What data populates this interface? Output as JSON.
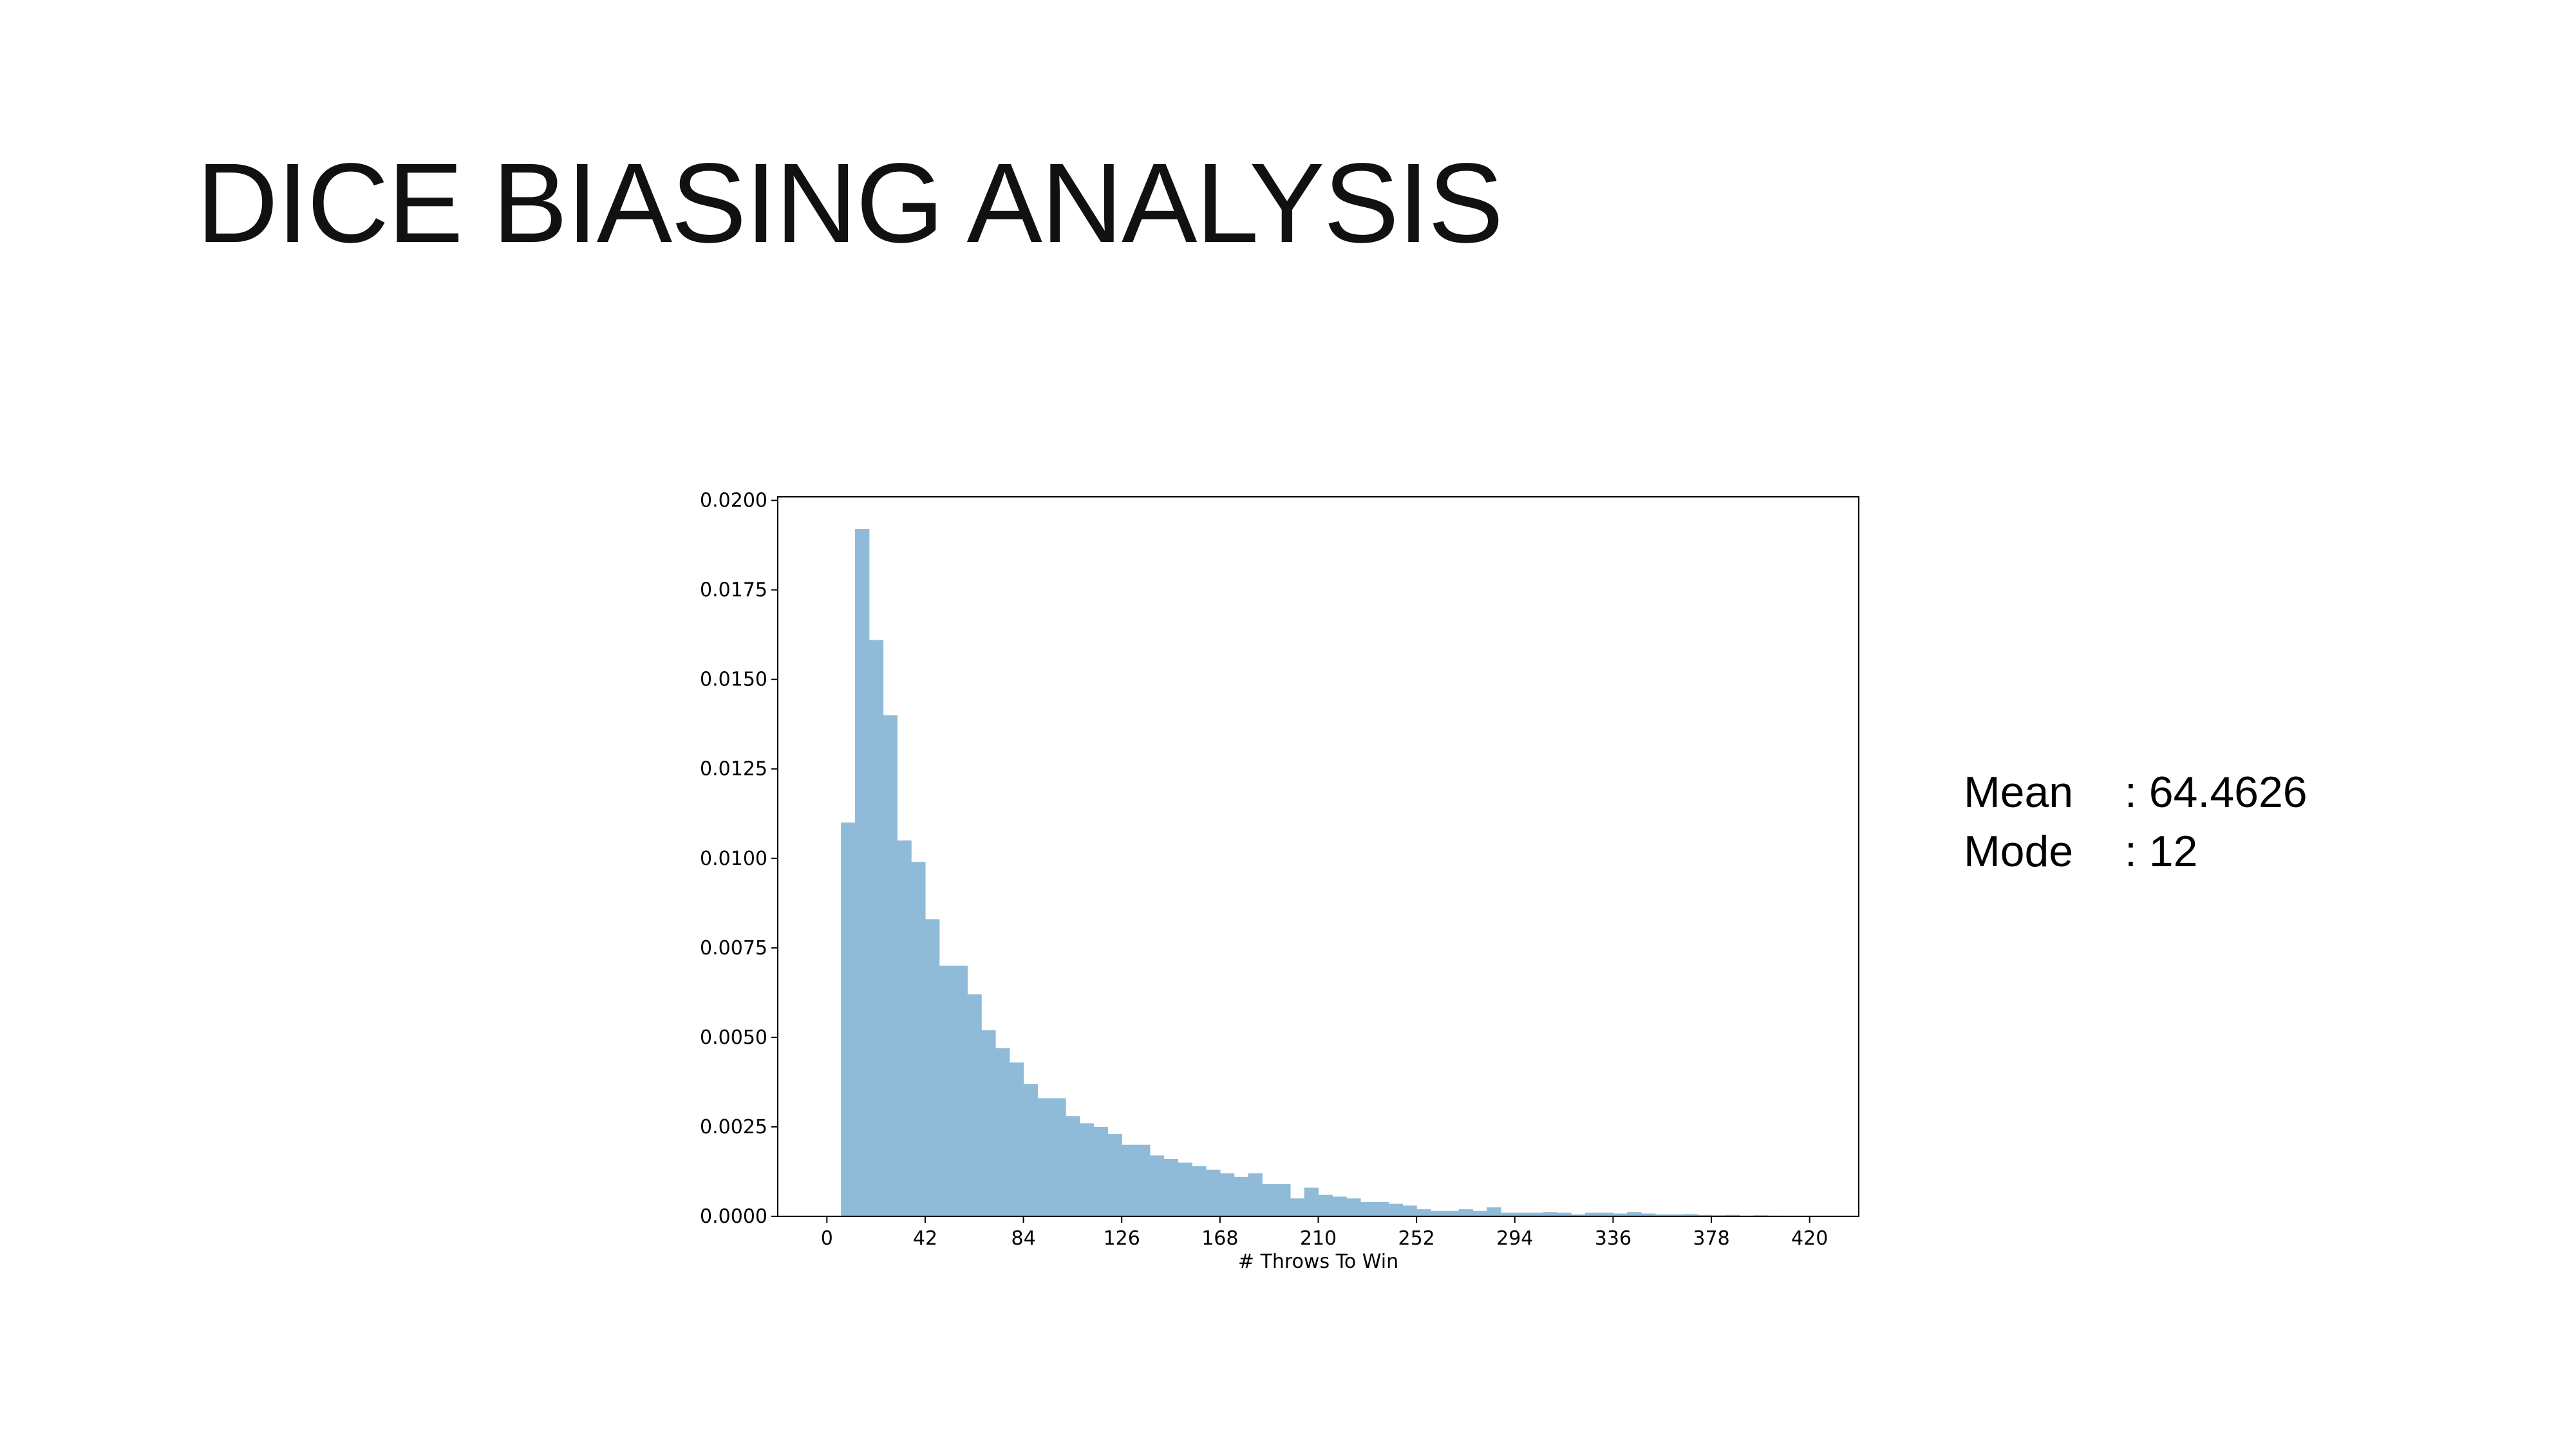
{
  "slide": {
    "title": "DICE BIASING ANALYSIS"
  },
  "stats": {
    "mean_label": "Mean",
    "mean_value": ": 64.4626",
    "mode_label": "Mode",
    "mode_value": ":  12"
  },
  "chart_data": {
    "type": "bar",
    "title": "",
    "xlabel": "# Throws To Win",
    "ylabel": "",
    "xlim": [
      -21,
      441
    ],
    "ylim": [
      0,
      0.0201
    ],
    "x_ticks": [
      0,
      42,
      84,
      126,
      168,
      210,
      252,
      294,
      336,
      378,
      420
    ],
    "y_ticks": [
      0.0,
      0.0025,
      0.005,
      0.0075,
      0.01,
      0.0125,
      0.015,
      0.0175,
      0.02
    ],
    "y_tick_labels": [
      "0.0000",
      "0.0025",
      "0.0050",
      "0.0075",
      "0.0100",
      "0.0125",
      "0.0150",
      "0.0175",
      "0.0200"
    ],
    "bar_color": "#8fbbd9",
    "bin_start": 6,
    "bin_width": 6,
    "values": [
      0.011,
      0.0192,
      0.0161,
      0.014,
      0.0105,
      0.0099,
      0.0083,
      0.007,
      0.007,
      0.0062,
      0.0052,
      0.0047,
      0.0043,
      0.0037,
      0.0033,
      0.0033,
      0.0028,
      0.0026,
      0.0025,
      0.0023,
      0.002,
      0.002,
      0.0017,
      0.0016,
      0.0015,
      0.0014,
      0.0013,
      0.0012,
      0.0011,
      0.0012,
      0.0009,
      0.0009,
      0.0005,
      0.0008,
      0.0006,
      0.00055,
      0.0005,
      0.0004,
      0.0004,
      0.00035,
      0.0003,
      0.0002,
      0.00015,
      0.00015,
      0.0002,
      0.00015,
      0.00025,
      0.0001,
      0.0001,
      0.0001,
      0.00012,
      0.0001,
      5e-05,
      0.0001,
      0.0001,
      8e-05,
      0.00012,
      8e-05,
      5e-05,
      5e-05,
      6e-05,
      4e-05,
      3e-05,
      4e-05,
      2e-05,
      3e-05,
      2e-05,
      1e-05
    ]
  }
}
